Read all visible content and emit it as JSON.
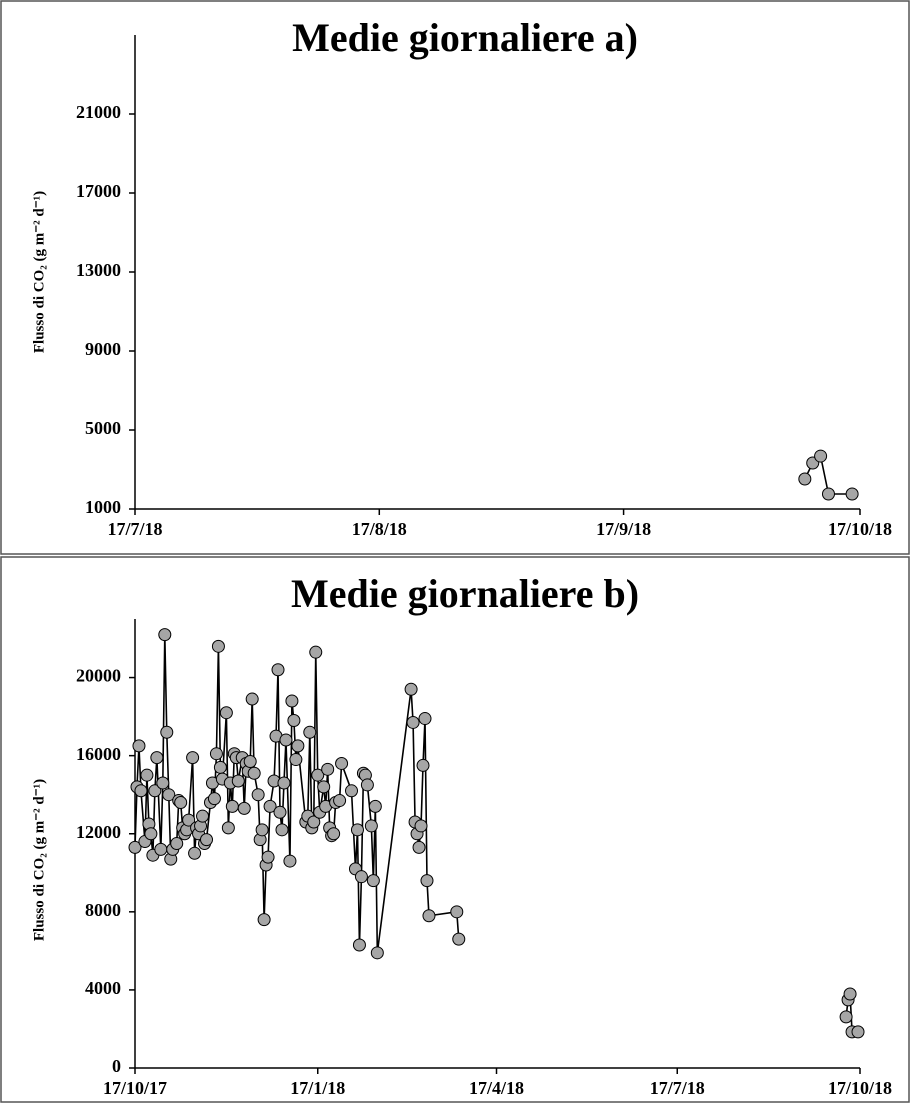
{
  "chart_data": [
    {
      "type": "line",
      "title": "Medie giornaliere a)",
      "ylabel": "Flusso di CO₂ (g m⁻² d⁻¹)",
      "x": [
        "10/10/18",
        "11/10/18",
        "12/10/18",
        "13/10/18",
        "16/10/18"
      ],
      "values": [
        2520,
        3330,
        3680,
        1760,
        1760
      ],
      "xlim": [
        "17/7/18",
        "17/10/18"
      ],
      "xticks": [
        "17/7/18",
        "17/8/18",
        "17/9/18",
        "17/10/18"
      ],
      "ylim": [
        1000,
        25000
      ],
      "yticks": [
        1000,
        5000,
        9000,
        13000,
        17000,
        21000
      ],
      "grid": false,
      "color": "#a6a6a6",
      "line_color": "#000000"
    },
    {
      "type": "line",
      "title": "Medie giornaliere b)",
      "ylabel": "Flusso di CO₂ (g m⁻² d⁻¹)",
      "x": [
        "17/10/17",
        "18/10/17",
        "19/10/17",
        "20/10/17",
        "22/10/17",
        "23/10/17",
        "24/10/17",
        "25/10/17",
        "26/10/17",
        "27/10/17",
        "28/10/17",
        "30/10/17",
        "31/10/17",
        "1/11/17",
        "2/11/17",
        "3/11/17",
        "4/11/17",
        "5/11/17",
        "7/11/17",
        "8/11/17",
        "9/11/17",
        "10/11/17",
        "11/11/17",
        "12/11/17",
        "13/11/17",
        "15/11/17",
        "16/11/17",
        "17/11/17",
        "18/11/17",
        "19/11/17",
        "20/11/17",
        "21/11/17",
        "22/11/17",
        "24/11/17",
        "25/11/17",
        "26/11/17",
        "27/11/17",
        "28/11/17",
        "29/11/17",
        "30/11/17",
        "2/12/17",
        "3/12/17",
        "4/12/17",
        "5/12/17",
        "6/12/17",
        "7/12/17",
        "8/12/17",
        "10/12/17",
        "11/12/17",
        "12/12/17",
        "13/12/17",
        "14/12/17",
        "15/12/17",
        "16/12/17",
        "18/12/17",
        "19/12/17",
        "20/12/17",
        "21/12/17",
        "22/12/17",
        "23/12/17",
        "24/12/17",
        "26/12/17",
        "27/12/17",
        "28/12/17",
        "29/12/17",
        "30/12/17",
        "31/12/17",
        "1/1/18",
        "3/1/18",
        "4/1/18",
        "5/1/18",
        "6/1/18",
        "7/1/18",
        "11/1/18",
        "12/1/18",
        "13/1/18",
        "14/1/18",
        "15/1/18",
        "16/1/18",
        "17/1/18",
        "18/1/18",
        "20/1/18",
        "21/1/18",
        "22/1/18",
        "23/1/18",
        "24/1/18",
        "25/1/18",
        "26/1/18",
        "28/1/18",
        "29/1/18",
        "3/2/18",
        "5/2/18",
        "6/2/18",
        "7/2/18",
        "8/2/18",
        "9/2/18",
        "10/2/18",
        "11/2/18",
        "13/2/18",
        "14/2/18",
        "15/2/18",
        "16/2/18",
        "5/3/18",
        "6/3/18",
        "7/3/18",
        "8/3/18",
        "9/3/18",
        "10/3/18",
        "11/3/18",
        "12/3/18",
        "13/3/18",
        "14/3/18",
        "28/3/18",
        "29/3/18",
        "30/3/18",
        "10/10/18",
        "11/10/18",
        "12/10/18",
        "13/10/18",
        "16/10/18"
      ],
      "values": [
        11300,
        14400,
        16500,
        14200,
        11600,
        15000,
        12500,
        12000,
        10900,
        14200,
        15900,
        11200,
        14600,
        22200,
        17200,
        14000,
        10700,
        11200,
        11500,
        13700,
        13600,
        12300,
        12000,
        12200,
        12700,
        15900,
        11000,
        12300,
        12000,
        12400,
        12900,
        11500,
        11700,
        13600,
        14600,
        13800,
        16100,
        21600,
        15400,
        14800,
        18200,
        12300,
        14600,
        13400,
        16100,
        15900,
        14700,
        15900,
        13300,
        15600,
        15200,
        15700,
        18900,
        15100,
        14000,
        11700,
        12200,
        7600,
        10400,
        10800,
        13400,
        14700,
        17000,
        20400,
        13100,
        12200,
        14600,
        16800,
        10600,
        18800,
        17800,
        15800,
        16500,
        12600,
        12900,
        17200,
        12300,
        12600,
        21300,
        15000,
        13100,
        14400,
        13400,
        15300,
        12300,
        11900,
        12000,
        13600,
        13700,
        15600,
        14200,
        10200,
        12200,
        6300,
        9800,
        15100,
        15000,
        14500,
        12400,
        9600,
        13400,
        5900,
        19400,
        17700,
        12600,
        12000,
        11300,
        12400,
        15500,
        17900,
        9600,
        7800,
        8000,
        6600,
        null,
        2620,
        3490,
        3790,
        1850,
        1850
      ],
      "xlim": [
        "17/10/17",
        "17/10/18"
      ],
      "xticks": [
        "17/10/17",
        "17/1/18",
        "17/4/18",
        "17/7/18",
        "17/10/18"
      ],
      "ylim": [
        0,
        23000
      ],
      "yticks": [
        0,
        4000,
        8000,
        12000,
        16000,
        20000
      ],
      "grid": false,
      "color": "#a6a6a6",
      "line_color": "#000000"
    }
  ]
}
